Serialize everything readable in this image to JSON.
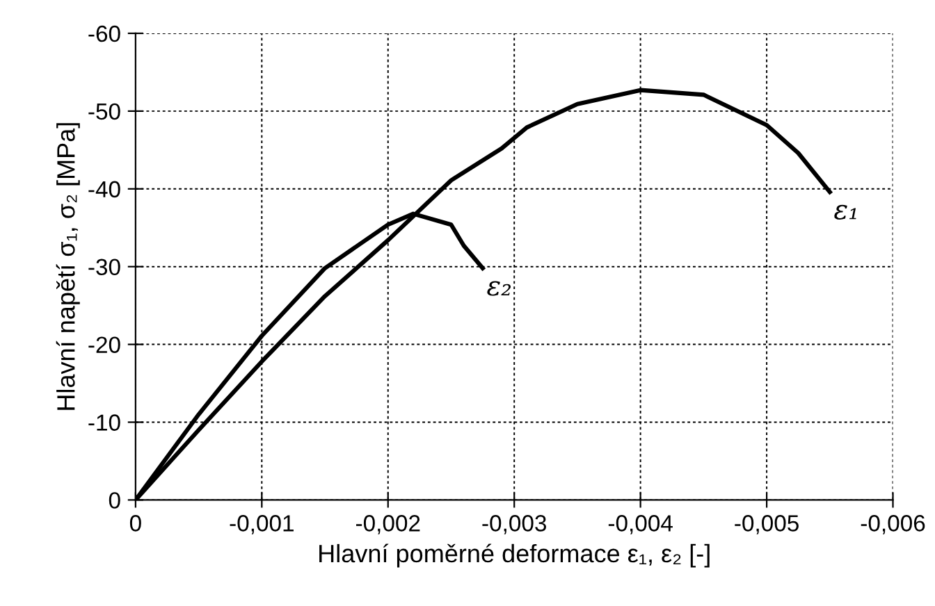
{
  "chart_data": {
    "type": "line",
    "xlabel": "Hlavní poměrné deformace ε₁, ε₂ [-]",
    "ylabel": "Hlavní napětí σ₁, σ₂ [MPa]",
    "xlim": [
      0,
      -0.006
    ],
    "ylim": [
      0,
      -60
    ],
    "xticks": [
      0,
      {
        "value": -0.001,
        "label": "-0,001"
      },
      {
        "value": -0.002,
        "label": "-0,002"
      },
      {
        "value": -0.003,
        "label": "-0,003"
      },
      {
        "value": -0.004,
        "label": "-0,004"
      },
      {
        "value": -0.005,
        "label": "-0,005"
      },
      {
        "value": -0.006,
        "label": "-0,006"
      }
    ],
    "yticks": [
      0,
      {
        "value": -10,
        "label": "-10"
      },
      {
        "value": -20,
        "label": "-20"
      },
      {
        "value": -30,
        "label": "-30"
      },
      {
        "value": -40,
        "label": "-40"
      },
      {
        "value": -50,
        "label": "-50"
      },
      {
        "value": -60,
        "label": "-60"
      }
    ],
    "grid": true,
    "line_style": "solid",
    "marker": "none",
    "series": [
      {
        "name": "ε₁",
        "color": "#000000",
        "x": [
          0,
          -0.0005,
          -0.001,
          -0.0015,
          -0.002,
          -0.0025,
          -0.0029,
          -0.0031,
          -0.0035,
          -0.004,
          -0.0045,
          -0.005,
          -0.00525,
          -0.0055
        ],
        "values": [
          0,
          -9,
          -17.8,
          -26.2,
          -33.4,
          -41.1,
          -45.2,
          -47.9,
          -50.9,
          -52.7,
          -52.1,
          -48.2,
          -44.6,
          -39.6
        ]
      },
      {
        "name": "ε₂",
        "color": "#000000",
        "x": [
          0,
          -0.0005,
          -0.001,
          -0.0015,
          -0.002,
          -0.0022,
          -0.0025,
          -0.0026,
          -0.00275
        ],
        "values": [
          0,
          -11,
          -21.1,
          -29.8,
          -35.4,
          -36.8,
          -35.4,
          -32.7,
          -29.8
        ]
      }
    ]
  }
}
